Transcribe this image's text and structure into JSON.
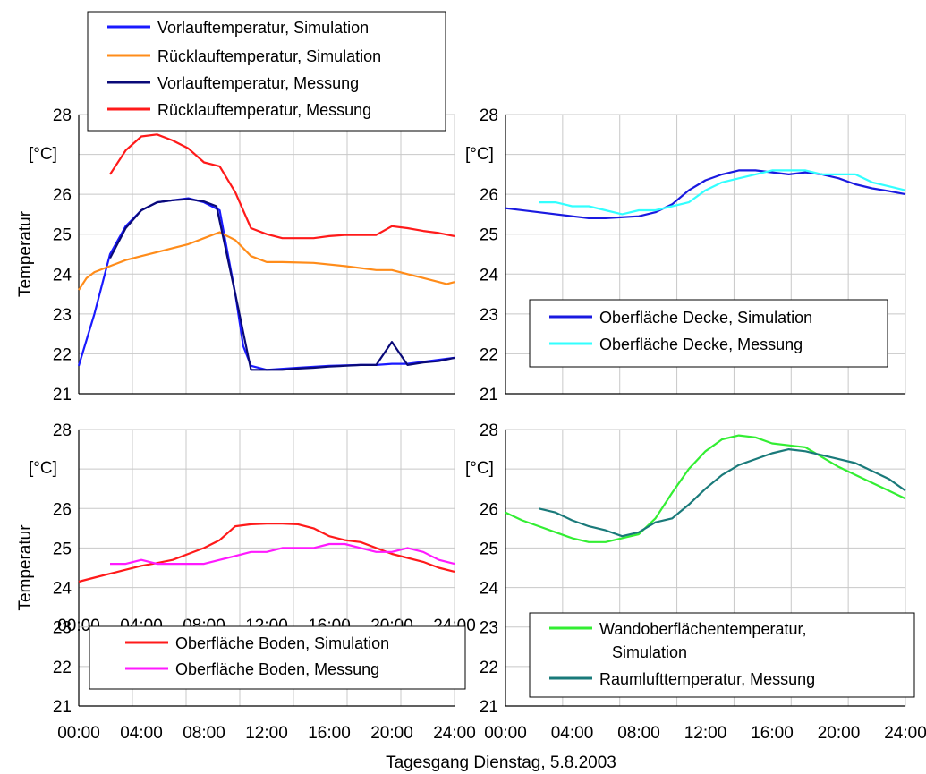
{
  "figure": {
    "caption": "Tagesgang Dienstag, 5.8.2003",
    "unit": "[°C]",
    "ylabel": "Temperatur"
  },
  "chart_data": [
    {
      "type": "line",
      "panel": "top-left",
      "ylim": [
        21,
        28
      ],
      "yticks": [
        "21",
        "22",
        "23",
        "24",
        "25",
        "26",
        "27",
        "28"
      ],
      "xticks": [
        "00:00",
        "04:00",
        "08:00",
        "12:00",
        "16:00",
        "20:00",
        "24:00"
      ],
      "xlim": [
        0,
        24
      ],
      "grid": true,
      "legend_position": "top",
      "series": [
        {
          "name": "Vorlauftemperatur, Simulation",
          "color": "#1a1aff",
          "x": [
            0,
            1,
            2,
            3,
            4,
            5,
            6,
            7,
            8,
            9,
            10,
            10.5,
            11,
            12,
            14,
            16,
            18,
            19,
            20,
            21,
            22,
            23,
            24
          ],
          "y": [
            21.7,
            23.0,
            24.5,
            25.2,
            25.6,
            25.8,
            25.85,
            25.9,
            25.8,
            25.6,
            23.5,
            22.2,
            21.7,
            21.6,
            21.65,
            21.7,
            21.72,
            21.72,
            21.75,
            21.75,
            21.8,
            21.85,
            21.9
          ]
        },
        {
          "name": "Rücklauftemperatur, Simulation",
          "color": "#ff8c1a",
          "x": [
            0,
            0.5,
            1,
            2,
            3,
            4,
            5,
            6,
            7,
            8,
            9,
            10,
            11,
            12,
            13,
            15,
            17,
            19,
            20,
            21,
            22,
            23,
            23.5,
            24
          ],
          "y": [
            23.6,
            23.9,
            24.05,
            24.2,
            24.35,
            24.45,
            24.55,
            24.65,
            24.75,
            24.9,
            25.05,
            24.85,
            24.45,
            24.3,
            24.3,
            24.28,
            24.2,
            24.1,
            24.1,
            24.0,
            23.9,
            23.8,
            23.75,
            23.8
          ]
        },
        {
          "name": "Vorlauftemperatur, Messung",
          "color": "#0a0a78",
          "x": [
            2,
            3,
            4,
            5,
            6,
            7,
            8,
            8.8,
            10,
            11,
            12,
            13,
            14,
            15,
            16,
            17,
            18,
            19,
            20,
            21,
            22,
            23,
            24
          ],
          "y": [
            24.4,
            25.15,
            25.6,
            25.8,
            25.85,
            25.88,
            25.82,
            25.7,
            23.5,
            21.6,
            21.6,
            21.6,
            21.63,
            21.65,
            21.68,
            21.7,
            21.72,
            21.72,
            22.3,
            21.72,
            21.78,
            21.82,
            21.9
          ]
        },
        {
          "name": "Rücklauftemperatur, Messung",
          "color": "#ff1a1a",
          "x": [
            2,
            3,
            4,
            5,
            6,
            7,
            8,
            9,
            10,
            11,
            12,
            13,
            14,
            15,
            16,
            17,
            18,
            19,
            20,
            21,
            22,
            23,
            24
          ],
          "y": [
            26.5,
            27.1,
            27.45,
            27.5,
            27.35,
            27.15,
            26.8,
            26.7,
            26.05,
            25.15,
            25.0,
            24.9,
            24.9,
            24.9,
            24.95,
            24.98,
            24.98,
            24.98,
            25.2,
            25.15,
            25.08,
            25.03,
            24.95
          ]
        }
      ]
    },
    {
      "type": "line",
      "panel": "top-right",
      "ylim": [
        21,
        28
      ],
      "yticks": [
        "21",
        "22",
        "23",
        "24",
        "25",
        "26",
        "27",
        "28"
      ],
      "xticks": [],
      "xlim": [
        0,
        24
      ],
      "grid": true,
      "legend_position": "bottom-right",
      "series": [
        {
          "name": "Oberfläche Decke, Simulation",
          "color": "#1a1ae0",
          "x": [
            0,
            2,
            4,
            5,
            6,
            8,
            9,
            10,
            11,
            12,
            13,
            14,
            15,
            16,
            17,
            18,
            19,
            20,
            21,
            22,
            23,
            24
          ],
          "y": [
            25.65,
            25.55,
            25.45,
            25.4,
            25.4,
            25.45,
            25.55,
            25.75,
            26.1,
            26.35,
            26.5,
            26.6,
            26.6,
            26.55,
            26.5,
            26.55,
            26.5,
            26.4,
            26.25,
            26.15,
            26.08,
            26.0
          ]
        },
        {
          "name": "Oberfläche Decke, Messung",
          "color": "#33ffff",
          "x": [
            2,
            3,
            4,
            5,
            6,
            7,
            8,
            9,
            10,
            11,
            12,
            13,
            14,
            15,
            16,
            17,
            18,
            19,
            20,
            21,
            22,
            23,
            24
          ],
          "y": [
            25.8,
            25.8,
            25.7,
            25.7,
            25.6,
            25.5,
            25.6,
            25.6,
            25.7,
            25.8,
            26.1,
            26.3,
            26.4,
            26.5,
            26.6,
            26.6,
            26.6,
            26.5,
            26.5,
            26.5,
            26.3,
            26.2,
            26.1
          ]
        }
      ]
    },
    {
      "type": "line",
      "panel": "bottom-left",
      "ylim": [
        21,
        28
      ],
      "yticks": [
        "21",
        "22",
        "23",
        "24",
        "25",
        "26",
        "27",
        "28"
      ],
      "xticks": [
        "00:00",
        "04:00",
        "08:00",
        "12:00",
        "16:00",
        "20:00",
        "24:00"
      ],
      "xlim": [
        0,
        24
      ],
      "grid": true,
      "legend_position": "bottom",
      "series": [
        {
          "name": "Oberfläche Boden, Simulation",
          "color": "#ff1a1a",
          "x": [
            0,
            1,
            2,
            3,
            4,
            5,
            6,
            7,
            8,
            9,
            10,
            11,
            12,
            13,
            14,
            15,
            16,
            17,
            18,
            19,
            20,
            21,
            22,
            23,
            24
          ],
          "y": [
            24.15,
            24.25,
            24.35,
            24.45,
            24.55,
            24.62,
            24.7,
            24.85,
            25.0,
            25.2,
            25.55,
            25.6,
            25.62,
            25.62,
            25.6,
            25.5,
            25.3,
            25.2,
            25.15,
            25.0,
            24.85,
            24.75,
            24.65,
            24.5,
            24.4
          ]
        },
        {
          "name": "Oberfläche Boden, Messung",
          "color": "#ff1aff",
          "x": [
            2,
            3,
            4,
            5,
            6,
            7,
            8,
            9,
            10,
            11,
            12,
            13,
            14,
            15,
            16,
            17,
            18,
            19,
            20,
            21,
            22,
            23,
            24
          ],
          "y": [
            24.6,
            24.6,
            24.7,
            24.6,
            24.6,
            24.6,
            24.6,
            24.7,
            24.8,
            24.9,
            24.9,
            25.0,
            25.0,
            25.0,
            25.1,
            25.1,
            25.0,
            24.9,
            24.9,
            25.0,
            24.9,
            24.7,
            24.6
          ]
        }
      ]
    },
    {
      "type": "line",
      "panel": "bottom-right",
      "ylim": [
        21,
        28
      ],
      "yticks": [
        "21",
        "22",
        "23",
        "24",
        "25",
        "26",
        "27",
        "28"
      ],
      "xticks": [
        "00:00",
        "04:00",
        "08:00",
        "12:00",
        "16:00",
        "20:00",
        "24:00"
      ],
      "xlim": [
        0,
        24
      ],
      "grid": true,
      "legend_position": "bottom-right",
      "series": [
        {
          "name": "Wandoberflächentemperatur,\nSimulation",
          "color": "#33ee33",
          "x": [
            0,
            1,
            2,
            3,
            4,
            5,
            6,
            7,
            8,
            9,
            10,
            11,
            12,
            13,
            14,
            15,
            16,
            17,
            18,
            19,
            20,
            21,
            22,
            23,
            24
          ],
          "y": [
            25.9,
            25.7,
            25.55,
            25.4,
            25.25,
            25.15,
            25.15,
            25.25,
            25.35,
            25.75,
            26.4,
            27.0,
            27.45,
            27.75,
            27.85,
            27.8,
            27.65,
            27.6,
            27.55,
            27.3,
            27.05,
            26.85,
            26.65,
            26.45,
            26.25
          ]
        },
        {
          "name": "Raumlufttemperatur, Messung",
          "color": "#1a7a7a",
          "x": [
            2,
            3,
            4,
            5,
            6,
            7,
            8,
            9,
            10,
            11,
            12,
            13,
            14,
            15,
            16,
            17,
            18,
            19,
            20,
            21,
            22,
            23,
            24
          ],
          "y": [
            26.0,
            25.9,
            25.7,
            25.55,
            25.45,
            25.3,
            25.4,
            25.65,
            25.75,
            26.1,
            26.5,
            26.85,
            27.1,
            27.25,
            27.4,
            27.5,
            27.45,
            27.35,
            27.25,
            27.15,
            26.95,
            26.75,
            26.45
          ]
        }
      ]
    }
  ]
}
